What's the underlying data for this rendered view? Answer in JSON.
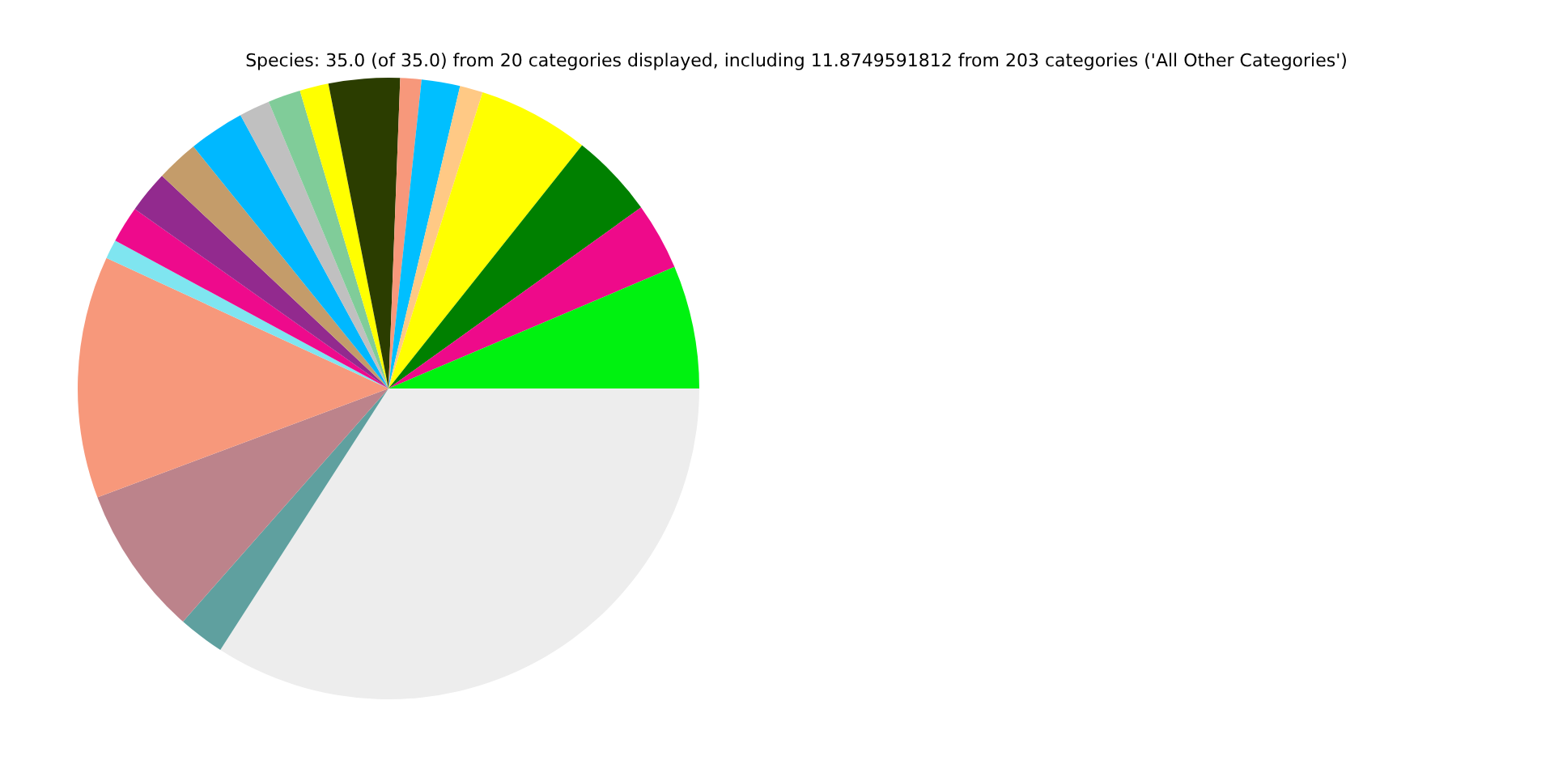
{
  "chart_data": {
    "type": "pie",
    "title": "Species: 35.0 (of 35.0) from 20 categories displayed, including 11.8749591812 from 203 categories ('All Other Categories')",
    "categories": [
      null,
      null,
      null,
      null,
      null,
      null,
      null,
      null,
      null,
      null,
      null,
      null,
      null,
      null,
      null,
      null,
      null,
      null,
      null,
      null
    ],
    "values": [
      34.1,
      2.4,
      7.8,
      12.6,
      1.0,
      1.9,
      2.2,
      2.2,
      2.9,
      1.6,
      1.7,
      1.5,
      3.7,
      1.1,
      2.0,
      1.2,
      5.8,
      4.4,
      3.5,
      6.4
    ],
    "colors": [
      "#ededed",
      "#5fa09f",
      "#bc838b",
      "#f7987b",
      "#7fe5f0",
      "#ee0a8c",
      "#922a8e",
      "#c49c6a",
      "#00b8ff",
      "#c0c0c0",
      "#80cc99",
      "#ffff00",
      "#2b3d00",
      "#f7987b",
      "#00bfff",
      "#ffc985",
      "#ffff00",
      "#008000",
      "#ee0a8a",
      "#00f210"
    ],
    "legend": false
  }
}
